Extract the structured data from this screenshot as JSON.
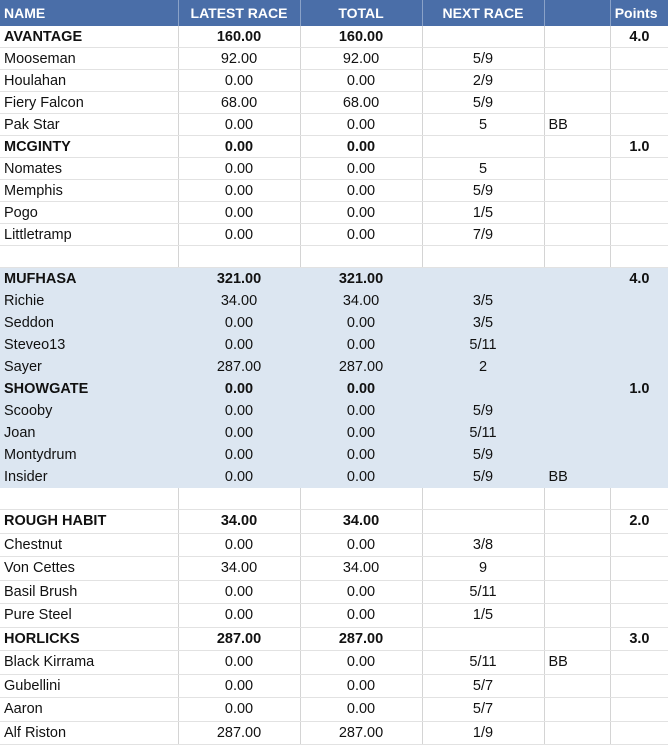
{
  "header": {
    "name": "NAME",
    "latest": "LATEST RACE",
    "total": "TOTAL",
    "next": "NEXT RACE",
    "flag": "",
    "points": "Points"
  },
  "sections": [
    {
      "shaded": false,
      "tall": false,
      "rows": [
        {
          "type": "team",
          "name": "AVANTAGE",
          "latest": "160.00",
          "total": "160.00",
          "next": "",
          "flag": "",
          "points": "4.0"
        },
        {
          "type": "member",
          "name": "Mooseman",
          "latest": "92.00",
          "total": "92.00",
          "next": "5/9",
          "flag": "",
          "points": ""
        },
        {
          "type": "member",
          "name": "Houlahan",
          "latest": "0.00",
          "total": "0.00",
          "next": "2/9",
          "flag": "",
          "points": ""
        },
        {
          "type": "member",
          "name": "Fiery Falcon",
          "latest": "68.00",
          "total": "68.00",
          "next": "5/9",
          "flag": "",
          "points": ""
        },
        {
          "type": "member",
          "name": "Pak Star",
          "latest": "0.00",
          "total": "0.00",
          "next": "5",
          "flag": "BB",
          "points": ""
        },
        {
          "type": "team",
          "name": "MCGINTY",
          "latest": "0.00",
          "total": "0.00",
          "next": "",
          "flag": "",
          "points": "1.0"
        },
        {
          "type": "member",
          "name": "Nomates",
          "latest": "0.00",
          "total": "0.00",
          "next": "5",
          "flag": "",
          "points": ""
        },
        {
          "type": "member",
          "name": "Memphis",
          "latest": "0.00",
          "total": "0.00",
          "next": "5/9",
          "flag": "",
          "points": ""
        },
        {
          "type": "member",
          "name": "Pogo",
          "latest": "0.00",
          "total": "0.00",
          "next": "1/5",
          "flag": "",
          "points": ""
        },
        {
          "type": "member",
          "name": "Littletramp",
          "latest": "0.00",
          "total": "0.00",
          "next": "7/9",
          "flag": "",
          "points": ""
        },
        {
          "type": "spacer"
        }
      ]
    },
    {
      "shaded": true,
      "tall": false,
      "rows": [
        {
          "type": "team",
          "name": "MUFHASA",
          "latest": "321.00",
          "total": "321.00",
          "next": "",
          "flag": "",
          "points": "4.0"
        },
        {
          "type": "member",
          "name": "Richie",
          "latest": "34.00",
          "total": "34.00",
          "next": "3/5",
          "flag": "",
          "points": ""
        },
        {
          "type": "member",
          "name": "Seddon",
          "latest": "0.00",
          "total": "0.00",
          "next": "3/5",
          "flag": "",
          "points": ""
        },
        {
          "type": "member",
          "name": "Steveo13",
          "latest": "0.00",
          "total": "0.00",
          "next": "5/11",
          "flag": "",
          "points": ""
        },
        {
          "type": "member",
          "name": "Sayer",
          "latest": "287.00",
          "total": "287.00",
          "next": "2",
          "flag": "",
          "points": ""
        },
        {
          "type": "team",
          "name": "SHOWGATE",
          "latest": "0.00",
          "total": "0.00",
          "next": "",
          "flag": "",
          "points": "1.0"
        },
        {
          "type": "member",
          "name": "Scooby",
          "latest": "0.00",
          "total": "0.00",
          "next": "5/9",
          "flag": "",
          "points": ""
        },
        {
          "type": "member",
          "name": "Joan",
          "latest": "0.00",
          "total": "0.00",
          "next": "5/11",
          "flag": "",
          "points": ""
        },
        {
          "type": "member",
          "name": "Montydrum",
          "latest": "0.00",
          "total": "0.00",
          "next": "5/9",
          "flag": "",
          "points": ""
        },
        {
          "type": "member",
          "name": "Insider",
          "latest": "0.00",
          "total": "0.00",
          "next": "5/9",
          "flag": "BB",
          "points": ""
        }
      ]
    },
    {
      "shaded": false,
      "tall": true,
      "rows": [
        {
          "type": "spacer"
        },
        {
          "type": "team",
          "name": "ROUGH HABIT",
          "latest": "34.00",
          "total": "34.00",
          "next": "",
          "flag": "",
          "points": "2.0"
        },
        {
          "type": "member",
          "name": "Chestnut",
          "latest": "0.00",
          "total": "0.00",
          "next": "3/8",
          "flag": "",
          "points": ""
        },
        {
          "type": "member",
          "name": "Von Cettes",
          "latest": "34.00",
          "total": "34.00",
          "next": "9",
          "flag": "",
          "points": ""
        },
        {
          "type": "member",
          "name": "Basil Brush",
          "latest": "0.00",
          "total": "0.00",
          "next": "5/11",
          "flag": "",
          "points": ""
        },
        {
          "type": "member",
          "name": "Pure Steel",
          "latest": "0.00",
          "total": "0.00",
          "next": "1/5",
          "flag": "",
          "points": ""
        },
        {
          "type": "team",
          "name": "HORLICKS",
          "latest": "287.00",
          "total": "287.00",
          "next": "",
          "flag": "",
          "points": "3.0"
        },
        {
          "type": "member",
          "name": "Black Kirrama",
          "latest": "0.00",
          "total": "0.00",
          "next": "5/11",
          "flag": "BB",
          "points": ""
        },
        {
          "type": "member",
          "name": "Gubellini",
          "latest": "0.00",
          "total": "0.00",
          "next": "5/7",
          "flag": "",
          "points": ""
        },
        {
          "type": "member",
          "name": "Aaron",
          "latest": "0.00",
          "total": "0.00",
          "next": "5/7",
          "flag": "",
          "points": ""
        },
        {
          "type": "member",
          "name": "Alf Riston",
          "latest": "287.00",
          "total": "287.00",
          "next": "1/9",
          "flag": "",
          "points": ""
        }
      ]
    }
  ],
  "colors": {
    "header_bg": "#4a6ea8",
    "header_text": "#ffffff",
    "shaded_bg": "#dce6f1"
  }
}
